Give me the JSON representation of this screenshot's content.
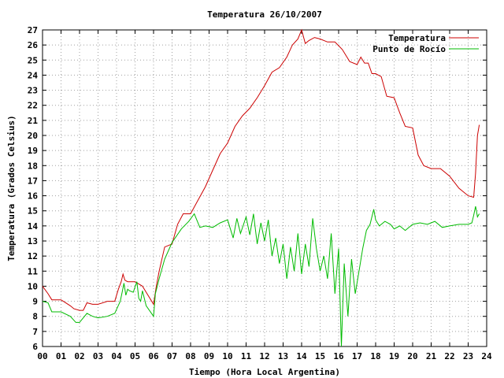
{
  "chart_data": {
    "type": "line",
    "title": "Temperatura 26/10/2007",
    "xlabel": "Tiempo (Hora Local Argentina)",
    "ylabel": "Temperatura (Grados Celsius)",
    "xlim": [
      0,
      24
    ],
    "ylim": [
      6,
      27
    ],
    "x_ticks": [
      "00",
      "01",
      "02",
      "03",
      "04",
      "05",
      "06",
      "07",
      "08",
      "09",
      "10",
      "11",
      "12",
      "13",
      "14",
      "15",
      "16",
      "17",
      "18",
      "19",
      "20",
      "21",
      "22",
      "23",
      "24"
    ],
    "y_ticks": [
      "6",
      "7",
      "8",
      "9",
      "10",
      "11",
      "12",
      "13",
      "14",
      "15",
      "16",
      "17",
      "18",
      "19",
      "20",
      "21",
      "22",
      "23",
      "24",
      "25",
      "26",
      "27"
    ],
    "grid": true,
    "legend_position": "top-right",
    "series": [
      {
        "name": "Temperatura",
        "color": "#cc0000",
        "x": [
          0.0,
          0.3,
          0.5,
          1.0,
          1.5,
          1.7,
          2.0,
          2.2,
          2.4,
          2.7,
          3.0,
          3.5,
          3.9,
          4.1,
          4.25,
          4.35,
          4.45,
          4.6,
          5.0,
          5.4,
          5.6,
          6.0,
          6.15,
          6.3,
          6.6,
          7.0,
          7.3,
          7.6,
          8.0,
          8.4,
          8.8,
          9.2,
          9.6,
          10.0,
          10.4,
          10.8,
          11.2,
          11.6,
          12.0,
          12.4,
          12.8,
          13.2,
          13.5,
          13.8,
          14.0,
          14.2,
          14.4,
          14.7,
          15.0,
          15.4,
          15.8,
          16.2,
          16.6,
          17.0,
          17.2,
          17.4,
          17.6,
          17.8,
          18.0,
          18.3,
          18.6,
          19.0,
          19.3,
          19.6,
          20.0,
          20.3,
          20.6,
          21.0,
          21.5,
          22.0,
          22.5,
          23.0,
          23.3,
          23.4,
          23.5,
          23.6
        ],
        "y": [
          10.0,
          9.5,
          9.1,
          9.1,
          8.7,
          8.5,
          8.4,
          8.4,
          8.9,
          8.8,
          8.8,
          9.0,
          9.0,
          9.8,
          10.3,
          10.8,
          10.4,
          10.3,
          10.3,
          10.0,
          9.6,
          8.8,
          10.0,
          11.0,
          12.6,
          12.8,
          14.1,
          14.8,
          14.8,
          15.7,
          16.6,
          17.7,
          18.8,
          19.5,
          20.6,
          21.3,
          21.8,
          22.5,
          23.3,
          24.2,
          24.5,
          25.2,
          26.0,
          26.4,
          27.0,
          26.1,
          26.3,
          26.5,
          26.4,
          26.2,
          26.2,
          25.7,
          24.9,
          24.7,
          25.2,
          24.8,
          24.8,
          24.1,
          24.1,
          23.9,
          22.6,
          22.5,
          21.5,
          20.6,
          20.5,
          18.7,
          18.0,
          17.8,
          17.8,
          17.3,
          16.5,
          16.0,
          15.9,
          17.5,
          20.0,
          20.7
        ]
      },
      {
        "name": "Punto de Rocío",
        "color": "#00bb00",
        "x": [
          0.0,
          0.3,
          0.5,
          1.0,
          1.5,
          1.8,
          2.0,
          2.4,
          2.7,
          3.0,
          3.5,
          3.9,
          4.2,
          4.3,
          4.4,
          4.5,
          4.6,
          4.7,
          4.9,
          5.1,
          5.2,
          5.3,
          5.4,
          5.6,
          6.0,
          6.1,
          6.3,
          6.6,
          7.0,
          7.5,
          7.9,
          8.2,
          8.5,
          8.8,
          9.2,
          9.6,
          10.0,
          10.3,
          10.5,
          10.7,
          11.0,
          11.2,
          11.4,
          11.6,
          11.8,
          12.0,
          12.2,
          12.4,
          12.6,
          12.8,
          13.0,
          13.2,
          13.4,
          13.6,
          13.8,
          14.0,
          14.2,
          14.4,
          14.6,
          14.8,
          15.0,
          15.2,
          15.4,
          15.6,
          15.8,
          16.0,
          16.15,
          16.3,
          16.5,
          16.7,
          16.9,
          17.1,
          17.3,
          17.5,
          17.7,
          17.9,
          18.0,
          18.2,
          18.5,
          18.8,
          19.0,
          19.3,
          19.6,
          20.0,
          20.4,
          20.8,
          21.2,
          21.6,
          22.0,
          22.5,
          23.0,
          23.2,
          23.3,
          23.4,
          23.5,
          23.6
        ],
        "y": [
          9.0,
          8.9,
          8.3,
          8.3,
          8.0,
          7.6,
          7.6,
          8.2,
          8.0,
          7.9,
          8.0,
          8.2,
          9.0,
          9.6,
          10.2,
          9.4,
          9.8,
          9.7,
          9.6,
          10.3,
          9.2,
          9.0,
          9.7,
          8.7,
          8.0,
          9.5,
          10.5,
          11.8,
          12.9,
          13.8,
          14.3,
          14.8,
          13.9,
          14.0,
          13.9,
          14.2,
          14.4,
          13.2,
          14.5,
          13.5,
          14.6,
          13.4,
          14.8,
          12.8,
          14.2,
          13.0,
          14.4,
          12.0,
          13.2,
          11.5,
          12.8,
          10.5,
          12.6,
          11.0,
          13.5,
          10.8,
          12.8,
          11.3,
          14.5,
          12.5,
          11.0,
          12.0,
          10.5,
          13.5,
          9.5,
          12.5,
          6.0,
          11.5,
          8.0,
          11.8,
          9.5,
          11.0,
          12.5,
          13.7,
          14.1,
          15.1,
          14.4,
          14.0,
          14.3,
          14.1,
          13.8,
          14.0,
          13.7,
          14.1,
          14.2,
          14.1,
          14.3,
          13.9,
          14.0,
          14.1,
          14.1,
          14.2,
          14.7,
          15.3,
          14.6,
          14.8
        ]
      }
    ]
  }
}
